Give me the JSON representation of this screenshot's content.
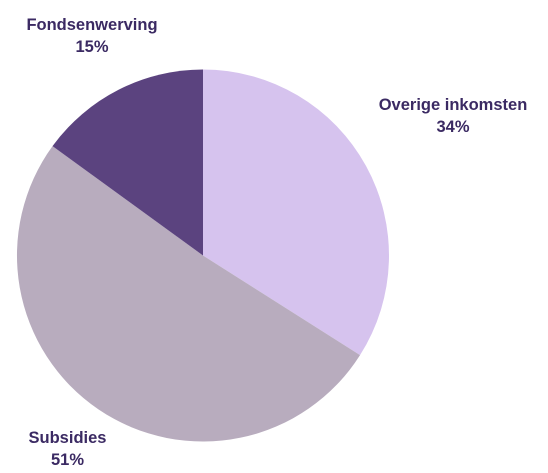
{
  "chart_data": {
    "type": "pie",
    "slices": [
      {
        "label": "Overige inkomsten",
        "value": 34,
        "display": "34%",
        "color": "#d6c3ee"
      },
      {
        "label": "Subsidies",
        "value": 51,
        "display": "51%",
        "color": "#b8acbe"
      },
      {
        "label": "Fondsenwerving",
        "value": 15,
        "display": "15%",
        "color": "#5b437f"
      }
    ],
    "start": "top",
    "direction": "clockwise",
    "legend": "none"
  }
}
